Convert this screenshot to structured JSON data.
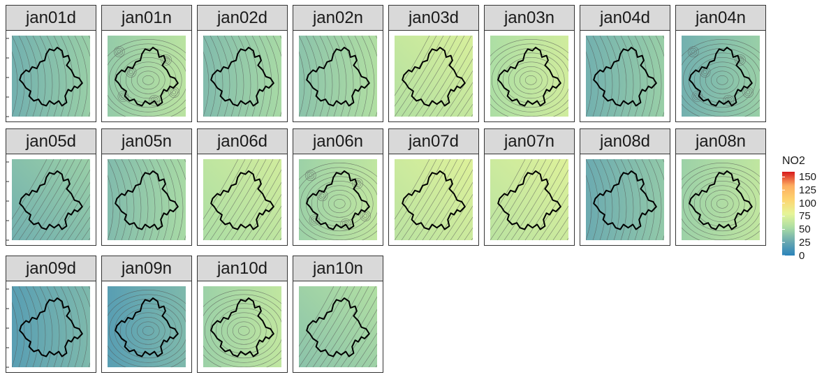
{
  "chart_data": {
    "type": "heatmap",
    "facet_layout": {
      "columns": 8,
      "rows": 3
    },
    "panels": [
      {
        "label": "jan01d",
        "mean_no2": 38,
        "gradient": "left-to-right"
      },
      {
        "label": "jan01n",
        "mean_no2": 52,
        "gradient": "hotspots"
      },
      {
        "label": "jan02d",
        "mean_no2": 44,
        "gradient": "left-to-right"
      },
      {
        "label": "jan02n",
        "mean_no2": 48,
        "gradient": "left-to-right"
      },
      {
        "label": "jan03d",
        "mean_no2": 65,
        "gradient": "diagonal"
      },
      {
        "label": "jan03n",
        "mean_no2": 62,
        "gradient": "radial"
      },
      {
        "label": "jan04d",
        "mean_no2": 38,
        "gradient": "left-to-right"
      },
      {
        "label": "jan04n",
        "mean_no2": 38,
        "gradient": "hotspots"
      },
      {
        "label": "jan05d",
        "mean_no2": 38,
        "gradient": "diagonal"
      },
      {
        "label": "jan05n",
        "mean_no2": 44,
        "gradient": "left-to-right"
      },
      {
        "label": "jan06d",
        "mean_no2": 62,
        "gradient": "diagonal"
      },
      {
        "label": "jan06n",
        "mean_no2": 55,
        "gradient": "hotspots"
      },
      {
        "label": "jan07d",
        "mean_no2": 68,
        "gradient": "diagonal"
      },
      {
        "label": "jan07n",
        "mean_no2": 68,
        "gradient": "diagonal"
      },
      {
        "label": "jan08d",
        "mean_no2": 35,
        "gradient": "left-to-right"
      },
      {
        "label": "jan08n",
        "mean_no2": 55,
        "gradient": "radial"
      },
      {
        "label": "jan09d",
        "mean_no2": 27,
        "gradient": "left-to-right"
      },
      {
        "label": "jan09n",
        "mean_no2": 27,
        "gradient": "radial"
      },
      {
        "label": "jan10d",
        "mean_no2": 55,
        "gradient": "radial"
      },
      {
        "label": "jan10n",
        "mean_no2": 48,
        "gradient": "diagonal"
      }
    ],
    "legend": {
      "title": "NO2",
      "ticks": [
        "150",
        "125",
        "100",
        "75",
        "50",
        "25",
        "0"
      ],
      "tick_values": [
        150,
        125,
        100,
        75,
        50,
        25,
        0
      ],
      "range": [
        0,
        160
      ],
      "placement": "right"
    },
    "colors": {
      "scale": [
        "#2b83ba",
        "#6aa9b0",
        "#abdda4",
        "#e6f598",
        "#fdd470",
        "#fdae61",
        "#d7191c"
      ],
      "strip_background": "#d9d9d9",
      "contour": "#555555",
      "boundary": "#000000"
    },
    "grid": false
  }
}
